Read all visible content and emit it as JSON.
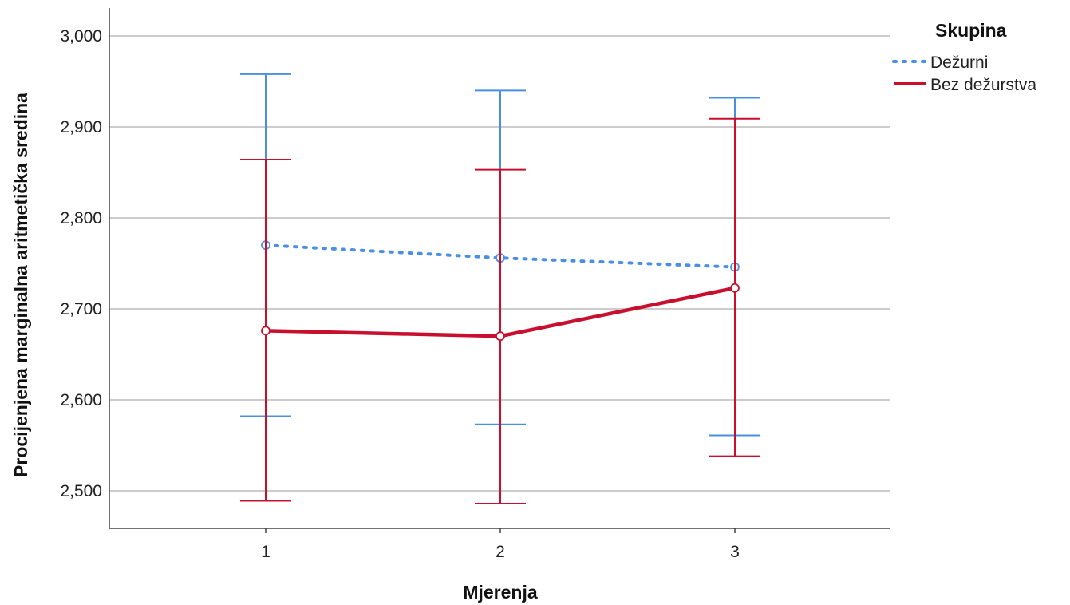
{
  "chart_data": {
    "type": "line",
    "xlabel": "Mjerenja",
    "ylabel": "Procijenjena marginalna aritmetička sredina",
    "categories": [
      "1",
      "2",
      "3"
    ],
    "ylim": [
      2.46,
      3.0
    ],
    "yticks": [
      {
        "value": 2.5,
        "label": "2,500"
      },
      {
        "value": 2.6,
        "label": "2,600"
      },
      {
        "value": 2.7,
        "label": "2,700"
      },
      {
        "value": 2.8,
        "label": "2,800"
      },
      {
        "value": 2.9,
        "label": "2,900"
      },
      {
        "value": 3.0,
        "label": "3,000"
      }
    ],
    "grid": "horizontal",
    "legend": {
      "title": "Skupina",
      "position": "top-right"
    },
    "series": [
      {
        "name": "Dežurni",
        "style": "dotted",
        "color": "#4a90e2",
        "values": [
          2.77,
          2.756,
          2.746
        ],
        "error_low": [
          2.582,
          2.573,
          2.561
        ],
        "error_high": [
          2.958,
          2.94,
          2.932
        ]
      },
      {
        "name": "Bez dežurstva",
        "style": "solid",
        "color": "#c8102e",
        "values": [
          2.676,
          2.67,
          2.723
        ],
        "error_low": [
          2.489,
          2.486,
          2.538
        ],
        "error_high": [
          2.864,
          2.853,
          2.909
        ]
      }
    ]
  }
}
